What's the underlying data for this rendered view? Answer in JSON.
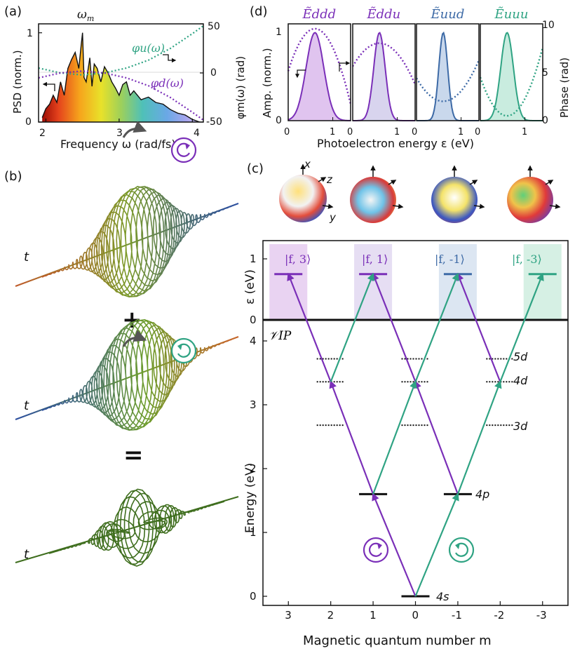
{
  "panel_labels": {
    "a": "(a)",
    "b": "(b)",
    "c": "(c)",
    "d": "(d)"
  },
  "panel_a": {
    "omega_label": "ω",
    "omega_sub": "m",
    "xlabel": "Frequency ω (rad/fs)",
    "ylabel_left": "PSD (norm.)",
    "ylabel_right": "φm(ω) (rad)",
    "phi_u_label": "φu(ω)",
    "phi_d_label": "φd(ω)"
  },
  "panel_b": {
    "t_label": "t",
    "plus": "+",
    "equals": "="
  },
  "panel_d": {
    "titles": [
      "Ẽddd",
      "Ẽddu",
      "Ẽuud",
      "Ẽuuu"
    ],
    "xlabel": "Photoelectron energy ε (eV)",
    "ylabel_left": "Amp. (norm.)",
    "ylabel_right": "Phase (rad)"
  },
  "panel_c": {
    "axis_xyz": [
      "x",
      "z",
      "y"
    ],
    "state_labels": [
      "|f, 3⟩",
      "|f, 1⟩",
      "|f, -1⟩",
      "|f, -3⟩"
    ],
    "vip_label": "𝒱IP",
    "level_labels": [
      "5d",
      "4d",
      "3d",
      "4p",
      "4s"
    ],
    "ylabel_top": "ε (eV)",
    "ylabel_bottom": "Energy (eV)",
    "xlabel": "Magnetic quantum number m"
  },
  "colors": {
    "purple": "#7a2fb8",
    "teal": "#2fa383",
    "blue": "#3d6aa6",
    "black": "#111111"
  },
  "chart_data": [
    {
      "id": "panel-a",
      "type": "area",
      "title": "ωm",
      "xlabel": "Frequency ω (rad/fs)",
      "ylabel": "PSD (norm.)",
      "ylabel_right": "φm(ω) (rad)",
      "xlim": [
        1.9,
        4.15
      ],
      "ylim": [
        0,
        1.1
      ],
      "ylim_right": [
        -50,
        50
      ],
      "xticks": [
        2,
        3,
        4
      ],
      "yticks": [
        0,
        1
      ],
      "yticks_right": [
        -50,
        0,
        50
      ],
      "psd": {
        "x": [
          1.95,
          2.0,
          2.05,
          2.1,
          2.15,
          2.2,
          2.25,
          2.3,
          2.35,
          2.4,
          2.45,
          2.48,
          2.5,
          2.52,
          2.55,
          2.6,
          2.63,
          2.66,
          2.7,
          2.75,
          2.8,
          2.85,
          2.9,
          2.95,
          3.0,
          3.05,
          3.1,
          3.15,
          3.2,
          3.3,
          3.4,
          3.5,
          3.6,
          3.7,
          3.8,
          3.9,
          4.0,
          4.1
        ],
        "y": [
          0.05,
          0.15,
          0.2,
          0.3,
          0.22,
          0.45,
          0.3,
          0.6,
          0.7,
          0.78,
          0.6,
          0.85,
          1.0,
          0.5,
          0.45,
          0.72,
          0.4,
          0.65,
          0.6,
          0.45,
          0.62,
          0.55,
          0.45,
          0.38,
          0.3,
          0.42,
          0.45,
          0.3,
          0.35,
          0.25,
          0.28,
          0.22,
          0.2,
          0.14,
          0.1,
          0.08,
          0.03,
          0.0
        ]
      },
      "series": [
        {
          "name": "φu(ω)",
          "x": [
            1.9,
            2.2,
            2.5,
            2.8,
            3.1,
            3.4,
            3.7,
            4.0,
            4.15
          ],
          "y": [
            5,
            0,
            -2,
            0,
            5,
            13,
            25,
            40,
            48
          ]
        },
        {
          "name": "φd(ω)",
          "x": [
            1.9,
            2.2,
            2.5,
            2.8,
            3.1,
            3.4,
            3.7,
            4.0,
            4.15
          ],
          "y": [
            -5,
            0,
            2,
            0,
            -5,
            -13,
            -25,
            -40,
            -48
          ]
        }
      ]
    },
    {
      "id": "panel-d",
      "type": "line",
      "xlabel": "Photoelectron energy ε (eV)",
      "ylabel": "Amp. (norm.)",
      "ylabel_right": "Phase (rad)",
      "xlim": [
        0,
        1.4
      ],
      "ylim": [
        0,
        1.1
      ],
      "ylim_right": [
        0,
        10
      ],
      "xticks": [
        0,
        1
      ],
      "yticks": [
        0,
        1
      ],
      "yticks_right": [
        0,
        5,
        10
      ],
      "subplots": [
        {
          "title": "Ẽddd",
          "amp_center": 0.6,
          "amp_width": 0.28,
          "phase_peak": 9.5,
          "phase_edge": 4.0,
          "phase_shape": "cap"
        },
        {
          "title": "Ẽddu",
          "amp_center": 0.6,
          "amp_width": 0.18,
          "phase_peak": 8.0,
          "phase_edge": 5.0,
          "phase_shape": "cap"
        },
        {
          "title": "Ẽuud",
          "amp_center": 0.6,
          "amp_width": 0.14,
          "phase_peak": 2.0,
          "phase_edge": 5.0,
          "phase_shape": "cup"
        },
        {
          "title": "Ẽuuu",
          "amp_center": 0.6,
          "amp_width": 0.2,
          "phase_peak": 0.5,
          "phase_edge": 5.5,
          "phase_shape": "cup"
        }
      ]
    },
    {
      "id": "panel-c",
      "type": "scatter",
      "xlabel": "Magnetic quantum number m",
      "ylabel": "Energy (eV)",
      "ylabel_top": "ε (eV)",
      "x_ticks": [
        3,
        2,
        1,
        0,
        -1,
        -2,
        -3
      ],
      "xlim": [
        3.6,
        -3.6
      ],
      "ylim_bottom": [
        -0.1,
        4.3
      ],
      "yticks_bottom": [
        0,
        1,
        2,
        3,
        4
      ],
      "ylim_top": [
        0,
        1.3
      ],
      "yticks_top": [
        0,
        1
      ],
      "levels": [
        {
          "name": "4s",
          "m": [
            0
          ],
          "energy": 0.0
        },
        {
          "name": "4p",
          "m": [
            1,
            -1
          ],
          "energy": 1.6
        },
        {
          "name": "3d",
          "m": [
            2,
            0,
            -2
          ],
          "energy": 2.68
        },
        {
          "name": "4d",
          "m": [
            2,
            0,
            -2
          ],
          "energy": 3.36
        },
        {
          "name": "5d",
          "m": [
            2,
            0,
            -2
          ],
          "energy": 3.72
        }
      ],
      "final_states": [
        {
          "label": "|f, 3⟩",
          "m": 3,
          "eps": 0.75,
          "color": "#7a2fb8"
        },
        {
          "label": "|f, 1⟩",
          "m": 1,
          "eps": 0.75,
          "color": "#7a2fb8"
        },
        {
          "label": "|f, -1⟩",
          "m": -1,
          "eps": 0.75,
          "color": "#3d6aa6"
        },
        {
          "label": "|f, -3⟩",
          "m": -3,
          "eps": 0.75,
          "color": "#2fa383"
        }
      ],
      "transitions_purple": [
        [
          0,
          0,
          1,
          1.6
        ],
        [
          1,
          1.6,
          2,
          3.36
        ],
        [
          2,
          3.36,
          3,
          4.75
        ],
        [
          -1,
          1.6,
          0,
          3.36
        ],
        [
          0,
          3.36,
          1,
          4.75
        ],
        [
          -2,
          3.36,
          -1,
          4.75
        ]
      ],
      "transitions_teal": [
        [
          0,
          0,
          -1,
          1.6
        ],
        [
          -1,
          1.6,
          -2,
          3.36
        ],
        [
          -2,
          3.36,
          -3,
          4.75
        ],
        [
          1,
          1.6,
          0,
          3.36
        ],
        [
          0,
          3.36,
          -1,
          4.75
        ],
        [
          2,
          3.36,
          1,
          4.75
        ]
      ]
    }
  ]
}
